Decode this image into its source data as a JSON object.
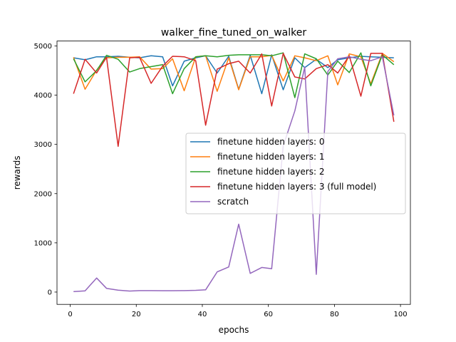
{
  "chart_data": {
    "type": "line",
    "title": "walker_fine_tuned_on_walker",
    "xlabel": "epochs",
    "ylabel": "rewards",
    "xlim": [
      -4,
      103
    ],
    "ylim": [
      -250,
      5100
    ],
    "xticks": [
      0,
      20,
      40,
      60,
      80,
      100
    ],
    "yticks": [
      0,
      1000,
      2000,
      3000,
      4000,
      5000
    ],
    "grid": false,
    "legend_position": "center-right",
    "x": [
      1,
      4.5,
      8,
      11,
      14.5,
      18,
      21,
      24.5,
      28,
      31,
      34.5,
      38,
      41,
      44.5,
      48,
      51,
      54.5,
      58,
      61,
      64.5,
      68,
      71,
      74.5,
      78,
      81,
      84.5,
      88,
      91,
      94.5,
      98
    ],
    "series": [
      {
        "name": "finetune hidden layers: 0",
        "color": "#1f77b4",
        "values": [
          4760,
          4720,
          4780,
          4780,
          4790,
          4770,
          4760,
          4800,
          4780,
          4190,
          4690,
          4760,
          4800,
          4450,
          4790,
          4120,
          4810,
          4030,
          4820,
          4110,
          4760,
          4560,
          4730,
          4560,
          4720,
          4760,
          4790,
          4780,
          4770,
          4760
        ]
      },
      {
        "name": "finetune hidden layers: 1",
        "color": "#ff7f0e",
        "values": [
          4770,
          4120,
          4510,
          4760,
          4770,
          4770,
          4780,
          4530,
          4540,
          4740,
          4090,
          4780,
          4800,
          4080,
          4760,
          4110,
          4780,
          4780,
          4810,
          4290,
          4800,
          4760,
          4700,
          4800,
          4210,
          4840,
          4780,
          4230,
          4850,
          4680
        ]
      },
      {
        "name": "finetune hidden layers: 2",
        "color": "#2ca02c",
        "values": [
          4740,
          4270,
          4500,
          4810,
          4730,
          4470,
          4540,
          4580,
          4620,
          4030,
          4540,
          4780,
          4800,
          4780,
          4810,
          4820,
          4820,
          4820,
          4800,
          4860,
          3950,
          4840,
          4740,
          4410,
          4690,
          4460,
          4860,
          4190,
          4820,
          4620
        ]
      },
      {
        "name": "finetune hidden layers: 3 (full model)",
        "color": "#d62728",
        "values": [
          4030,
          4730,
          4450,
          4770,
          2960,
          4760,
          4770,
          4240,
          4590,
          4790,
          4780,
          4700,
          3390,
          4530,
          4640,
          4690,
          4450,
          4840,
          3780,
          4850,
          4370,
          4330,
          4540,
          4620,
          4450,
          4800,
          3980,
          4850,
          4850,
          3460
        ]
      },
      {
        "name": "scratch",
        "color": "#9467bd",
        "values": [
          10,
          25,
          285,
          75,
          40,
          20,
          30,
          30,
          28,
          28,
          30,
          35,
          45,
          410,
          510,
          1380,
          380,
          500,
          475,
          2970,
          3680,
          4570,
          360,
          4480,
          4740,
          4780,
          4730,
          4700,
          4780,
          3590
        ]
      }
    ]
  }
}
